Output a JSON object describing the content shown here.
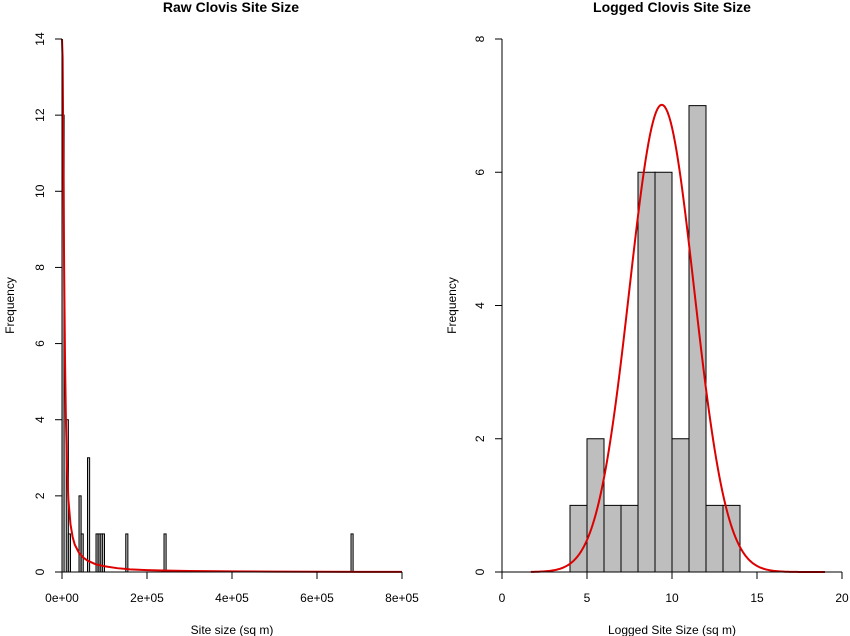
{
  "colors": {
    "bar_fill": "#bebebe",
    "bar_stroke": "#000000",
    "curve": "#dd0000"
  },
  "chart_data": [
    {
      "type": "histogram",
      "title": "Raw Clovis Site Size",
      "xlabel": "Site size (sq m)",
      "ylabel": "Frequency",
      "xlim": [
        0,
        800000
      ],
      "ylim": [
        0,
        14
      ],
      "x_ticks": [
        {
          "value": 0,
          "label": "0e+00"
        },
        {
          "value": 200000,
          "label": "2e+05"
        },
        {
          "value": 400000,
          "label": "4e+05"
        },
        {
          "value": 600000,
          "label": "6e+05"
        },
        {
          "value": 800000,
          "label": "8e+05"
        }
      ],
      "y_ticks": [
        {
          "value": 0,
          "label": "0"
        },
        {
          "value": 2,
          "label": "2"
        },
        {
          "value": 4,
          "label": "4"
        },
        {
          "value": 6,
          "label": "6"
        },
        {
          "value": 8,
          "label": "8"
        },
        {
          "value": 10,
          "label": "10"
        },
        {
          "value": 12,
          "label": "12"
        },
        {
          "value": 14,
          "label": "14"
        }
      ],
      "bins": [
        {
          "x0": 0,
          "x1": 5000,
          "count": 12
        },
        {
          "x0": 5000,
          "x1": 10000,
          "count": 0
        },
        {
          "x0": 10000,
          "x1": 15000,
          "count": 4
        },
        {
          "x0": 15000,
          "x1": 20000,
          "count": 1
        },
        {
          "x0": 20000,
          "x1": 25000,
          "count": 0
        },
        {
          "x0": 25000,
          "x1": 30000,
          "count": 0
        },
        {
          "x0": 30000,
          "x1": 35000,
          "count": 0
        },
        {
          "x0": 35000,
          "x1": 40000,
          "count": 0
        },
        {
          "x0": 40000,
          "x1": 45000,
          "count": 2
        },
        {
          "x0": 45000,
          "x1": 50000,
          "count": 1
        },
        {
          "x0": 50000,
          "x1": 55000,
          "count": 0
        },
        {
          "x0": 55000,
          "x1": 60000,
          "count": 0
        },
        {
          "x0": 60000,
          "x1": 65000,
          "count": 3
        },
        {
          "x0": 65000,
          "x1": 70000,
          "count": 0
        },
        {
          "x0": 70000,
          "x1": 75000,
          "count": 0
        },
        {
          "x0": 75000,
          "x1": 80000,
          "count": 0
        },
        {
          "x0": 80000,
          "x1": 85000,
          "count": 1
        },
        {
          "x0": 85000,
          "x1": 90000,
          "count": 1
        },
        {
          "x0": 90000,
          "x1": 95000,
          "count": 1
        },
        {
          "x0": 95000,
          "x1": 100000,
          "count": 1
        },
        {
          "x0": 150000,
          "x1": 155000,
          "count": 1
        },
        {
          "x0": 240000,
          "x1": 245000,
          "count": 1
        },
        {
          "x0": 680000,
          "x1": 685000,
          "count": 1
        }
      ],
      "curve": {
        "x": [
          0,
          1500,
          3000,
          5000,
          7000,
          9000,
          12000,
          15000,
          20000,
          25000,
          30000,
          40000,
          50000,
          60000,
          80000,
          100000,
          130000,
          160000,
          200000,
          250000,
          300000,
          400000,
          500000,
          600000,
          700000,
          800000
        ],
        "y": [
          14,
          13.5,
          11.2,
          8.0,
          5.7,
          4.1,
          2.7,
          1.9,
          1.25,
          0.92,
          0.72,
          0.5,
          0.38,
          0.3,
          0.2,
          0.15,
          0.1,
          0.07,
          0.05,
          0.035,
          0.025,
          0.015,
          0.01,
          0.005,
          0.003,
          0.002
        ]
      }
    },
    {
      "type": "histogram",
      "title": "Logged Clovis Site Size",
      "xlabel": "Logged Site Size (sq m)",
      "ylabel": "Frequency",
      "xlim": [
        0,
        20
      ],
      "ylim": [
        0,
        8
      ],
      "x_ticks": [
        {
          "value": 0,
          "label": "0"
        },
        {
          "value": 5,
          "label": "5"
        },
        {
          "value": 10,
          "label": "10"
        },
        {
          "value": 15,
          "label": "15"
        },
        {
          "value": 20,
          "label": "20"
        }
      ],
      "y_ticks": [
        {
          "value": 0,
          "label": "0"
        },
        {
          "value": 2,
          "label": "2"
        },
        {
          "value": 4,
          "label": "4"
        },
        {
          "value": 6,
          "label": "6"
        },
        {
          "value": 8,
          "label": "8"
        }
      ],
      "bins": [
        {
          "x0": 4,
          "x1": 5,
          "count": 1
        },
        {
          "x0": 5,
          "x1": 6,
          "count": 2
        },
        {
          "x0": 6,
          "x1": 7,
          "count": 1
        },
        {
          "x0": 7,
          "x1": 8,
          "count": 1
        },
        {
          "x0": 8,
          "x1": 9,
          "count": 6
        },
        {
          "x0": 9,
          "x1": 10,
          "count": 6
        },
        {
          "x0": 10,
          "x1": 11,
          "count": 2
        },
        {
          "x0": 11,
          "x1": 12,
          "count": 7
        },
        {
          "x0": 12,
          "x1": 13,
          "count": 1
        },
        {
          "x0": 13,
          "x1": 14,
          "count": 1
        }
      ],
      "curve": {
        "type": "normal",
        "mean": 9.4,
        "sd": 1.9,
        "scale": 33.4,
        "x_from": 1.7,
        "x_to": 19.0
      }
    }
  ]
}
